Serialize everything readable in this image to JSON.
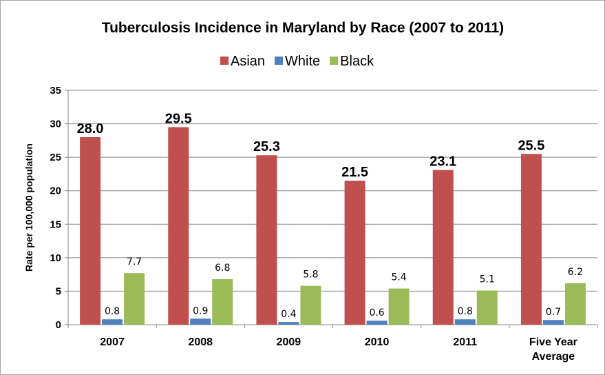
{
  "chart_data": {
    "type": "bar",
    "title": "Tuberculosis Incidence in Maryland by Race (2007 to 2011)",
    "ylabel": "Rate per 100,000 population",
    "xlabel": "",
    "ylim": [
      0,
      35
    ],
    "yticks": [
      "0",
      "5",
      "10",
      "15",
      "20",
      "25",
      "30",
      "35"
    ],
    "grid": true,
    "legend_position": "top",
    "categories": [
      "2007",
      "2008",
      "2009",
      "2010",
      "2011",
      "Five Year Average"
    ],
    "category_lines": [
      [
        "2007"
      ],
      [
        "2008"
      ],
      [
        "2009"
      ],
      [
        "2010"
      ],
      [
        "2011"
      ],
      [
        "Five Year",
        "Average"
      ]
    ],
    "series": [
      {
        "name": "Asian",
        "color": "#c0504d",
        "values": [
          28.0,
          29.5,
          25.3,
          21.5,
          23.1,
          25.5
        ],
        "labels": [
          "28.0",
          "29.5",
          "25.3",
          "21.5",
          "23.1",
          "25.5"
        ]
      },
      {
        "name": "White",
        "color": "#4f81bd",
        "values": [
          0.8,
          0.9,
          0.4,
          0.6,
          0.8,
          0.7
        ],
        "labels": [
          "0.8",
          "0.9",
          "0.4",
          "0.6",
          "0.8",
          "0.7"
        ]
      },
      {
        "name": "Black",
        "color": "#9bbb59",
        "values": [
          7.7,
          6.8,
          5.8,
          5.4,
          5.1,
          6.2
        ],
        "labels": [
          "7.7",
          "6.8",
          "5.8",
          "5.4",
          "5.1",
          "6.2"
        ]
      }
    ]
  }
}
